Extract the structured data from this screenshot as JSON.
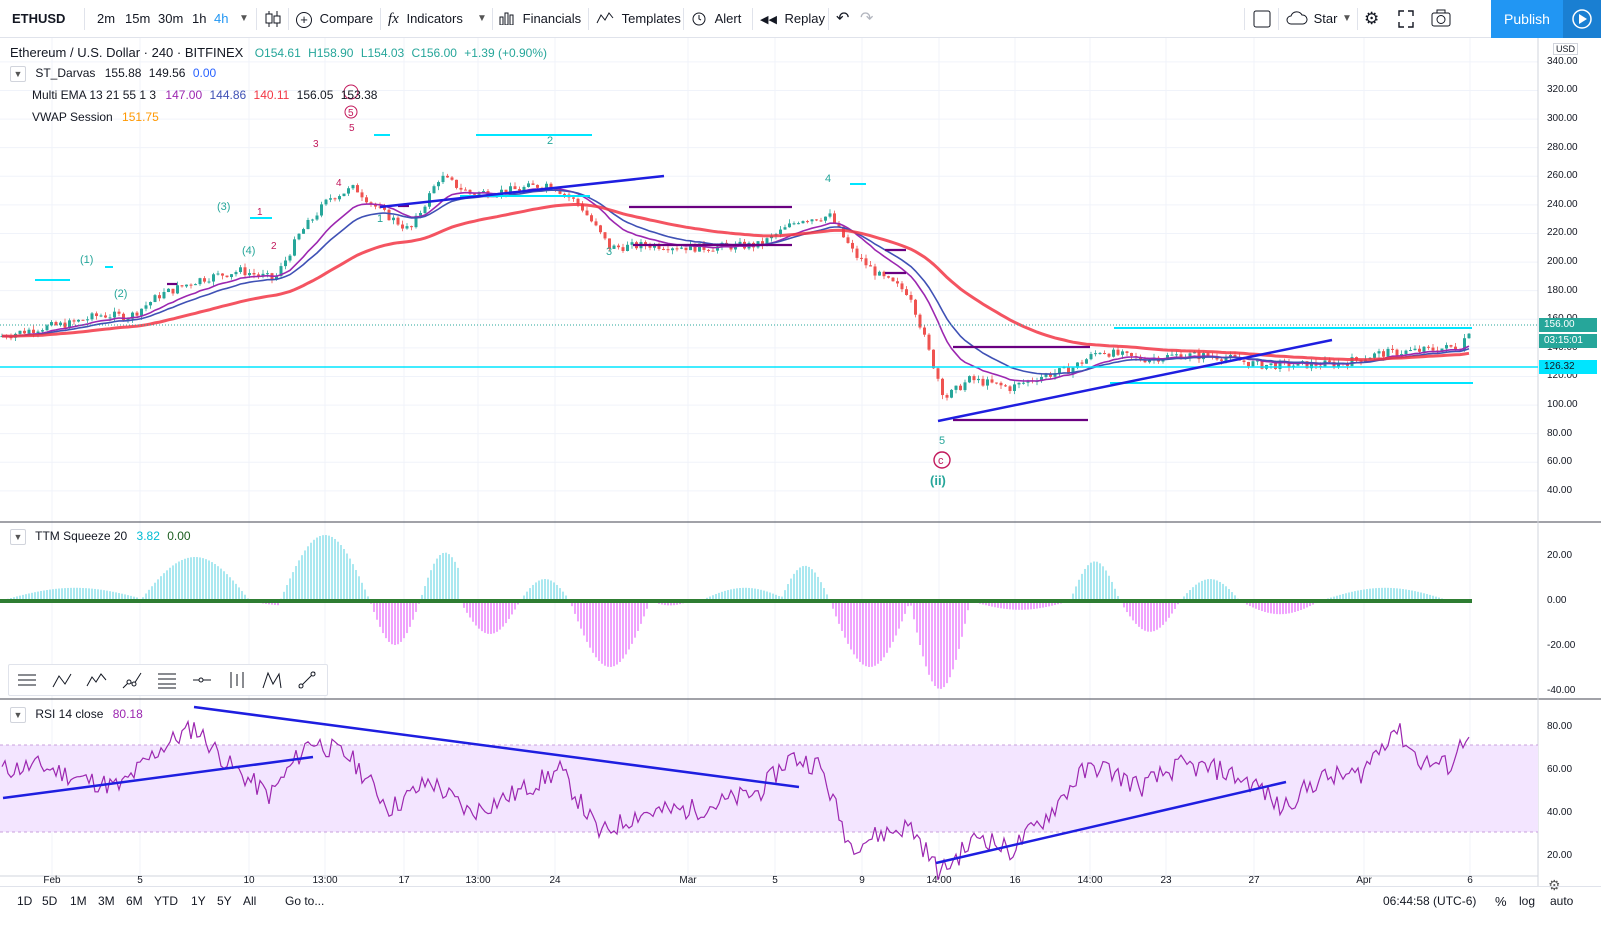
{
  "toolbar": {
    "symbol": "ETHUSD",
    "intervals": [
      "2m",
      "15m",
      "30m",
      "1h",
      "4h"
    ],
    "active_interval": "4h",
    "compare_label": "Compare",
    "indicators_label": "Indicators",
    "financials_label": "Financials",
    "templates_label": "Templates",
    "alert_label": "Alert",
    "replay_label": "Replay",
    "star_label": "Star",
    "publish_label": "Publish"
  },
  "legend": {
    "title": "Ethereum / U.S. Dollar · 240 · BITFINEX",
    "open": "O154.61",
    "high": "H158.90",
    "low": "L154.03",
    "close": "C156.00",
    "change": "+1.39 (+0.90%)",
    "darvas_name": "ST_Darvas",
    "darvas_v1": "155.88",
    "darvas_v2": "149.56",
    "darvas_v3": "0.00",
    "ema_name": "Multi EMA 13 21 55 1 3",
    "ema_v1": "147.00",
    "ema_v2": "144.86",
    "ema_v3": "140.11",
    "ema_v4": "156.05",
    "ema_v5": "153.38",
    "vwap_name": "VWAP Session",
    "vwap_v1": "151.75"
  },
  "ttm": {
    "name": "TTM Squeeze 20",
    "v1": "3.82",
    "v2": "0.00"
  },
  "rsi": {
    "name": "RSI 14 close",
    "v1": "80.18"
  },
  "price_axis": {
    "currency": "USD",
    "ticks": [
      "340.00",
      "320.00",
      "300.00",
      "280.00",
      "260.00",
      "240.00",
      "220.00",
      "200.00",
      "180.00",
      "160.00",
      "140.00",
      "120.00",
      "100.00",
      "80.00",
      "60.00",
      "40.00"
    ],
    "last_price": "156.00",
    "countdown": "03:15:01",
    "hline_price": "126.32"
  },
  "ttm_axis": {
    "ticks": [
      "20.00",
      "0.00",
      "-20.00",
      "-40.00"
    ]
  },
  "rsi_axis": {
    "ticks": [
      "80.00",
      "60.00",
      "40.00",
      "20.00"
    ]
  },
  "time_axis": {
    "ticks": [
      "Feb",
      "5",
      "10",
      "13:00",
      "17",
      "13:00",
      "24",
      "Mar",
      "5",
      "9",
      "14:00",
      "16",
      "14:00",
      "23",
      "27",
      "Apr",
      "6"
    ]
  },
  "wave_labels": {
    "w1": "(1)",
    "w2": "(2)",
    "w3": "(3)",
    "w4": "(4)",
    "a1": "1",
    "a2": "2",
    "a3": "3",
    "a4": "4",
    "a5": "5",
    "b1": "1",
    "b2": "2",
    "b3": "3",
    "b4": "4",
    "b5": "5",
    "c5": "5",
    "c_letter": "c",
    "ii": "(ii)"
  },
  "bottom": {
    "ranges": [
      "1D",
      "5D",
      "1M",
      "3M",
      "6M",
      "YTD",
      "1Y",
      "5Y",
      "All"
    ],
    "goto_label": "Go to...",
    "clock": "06:44:58 (UTC-6)",
    "percent_label": "%",
    "log_label": "log",
    "auto_label": "auto"
  },
  "colors": {
    "accent": "#2196f3",
    "ema13": "#9c27b0",
    "ema21": "#3f51b5",
    "ema55": "#f23645",
    "vwap": "#ff9800",
    "cyan": "#00e5ff",
    "trendline": "#1e1ee0",
    "darvas": "#6a0080",
    "rsi_band": "#f3e5ff"
  }
}
